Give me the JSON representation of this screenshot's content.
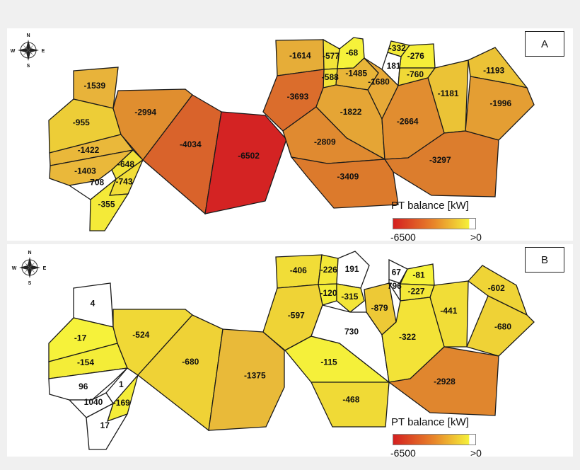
{
  "colors": {
    "scale_low": "#d42020",
    "scale_mid": "#e8862a",
    "scale_high": "#f5f03a",
    "positive": "#ffffff",
    "border": "#1a1a1a"
  },
  "compass": {
    "n": "N",
    "s": "S",
    "e": "E",
    "w": "W"
  },
  "legend": {
    "title": "PT balance [kW]",
    "min_label": "-6500",
    "max_label": ">0"
  },
  "panels": [
    {
      "label": "A",
      "regions": [
        {
          "value": "-1539",
          "color": "#e8b33a"
        },
        {
          "value": "-955",
          "color": "#edcd37"
        },
        {
          "value": "-1422",
          "color": "#eab83a"
        },
        {
          "value": "-1403",
          "color": "#eab83a"
        },
        {
          "value": "-648",
          "color": "#f2e237"
        },
        {
          "value": "708",
          "color": "#ffffff"
        },
        {
          "value": "-743",
          "color": "#f1dd37"
        },
        {
          "value": "-355",
          "color": "#f4ea38"
        },
        {
          "value": "-2994",
          "color": "#e08e2f"
        },
        {
          "value": "-4034",
          "color": "#d9632b"
        },
        {
          "value": "-6502",
          "color": "#d42323"
        },
        {
          "value": "-1614",
          "color": "#e6ad38"
        },
        {
          "value": "-577",
          "color": "#f2e338"
        },
        {
          "value": "-68",
          "color": "#f6f23a"
        },
        {
          "value": "-588",
          "color": "#f2e238"
        },
        {
          "value": "-1485",
          "color": "#e9b538"
        },
        {
          "value": "-3693",
          "color": "#db6d2c"
        },
        {
          "value": "-332",
          "color": "#f4eb38"
        },
        {
          "value": "-276",
          "color": "#f5ee39"
        },
        {
          "value": "181",
          "color": "#ffffff"
        },
        {
          "value": "-760",
          "color": "#f0d936"
        },
        {
          "value": "-1680",
          "color": "#e7a937"
        },
        {
          "value": "-1822",
          "color": "#e5a535"
        },
        {
          "value": "-1181",
          "color": "#ebc336"
        },
        {
          "value": "-1193",
          "color": "#ebc236"
        },
        {
          "value": "-1996",
          "color": "#e49e33"
        },
        {
          "value": "-2664",
          "color": "#e18d30"
        },
        {
          "value": "-2809",
          "color": "#e08a30"
        },
        {
          "value": "-3409",
          "color": "#dc7a2c"
        },
        {
          "value": "-3297",
          "color": "#dc7d2d"
        }
      ]
    },
    {
      "label": "B",
      "regions": [
        {
          "value": "4",
          "color": "#ffffff"
        },
        {
          "value": "-17",
          "color": "#f6f23a"
        },
        {
          "value": "-154",
          "color": "#f4ed38"
        },
        {
          "value": "96",
          "color": "#ffffff"
        },
        {
          "value": "1",
          "color": "#ffffff"
        },
        {
          "value": "1040",
          "color": "#ffffff"
        },
        {
          "value": "-169",
          "color": "#f4ed38"
        },
        {
          "value": "17",
          "color": "#ffffff"
        },
        {
          "value": "-524",
          "color": "#f0d836"
        },
        {
          "value": "-680",
          "color": "#efd236"
        },
        {
          "value": "-1375",
          "color": "#e9ba39"
        },
        {
          "value": "-406",
          "color": "#f1dd37"
        },
        {
          "value": "-226",
          "color": "#f3e838"
        },
        {
          "value": "191",
          "color": "#ffffff"
        },
        {
          "value": "-120",
          "color": "#f4ee38"
        },
        {
          "value": "-315",
          "color": "#f3e537"
        },
        {
          "value": "-597",
          "color": "#efd336"
        },
        {
          "value": "-879",
          "color": "#edc936"
        },
        {
          "value": "67",
          "color": "#ffffff"
        },
        {
          "value": "-81",
          "color": "#f6f23a"
        },
        {
          "value": "796",
          "color": "#ffffff"
        },
        {
          "value": "-227",
          "color": "#f3e838"
        },
        {
          "value": "-441",
          "color": "#f1dd37"
        },
        {
          "value": "-602",
          "color": "#efd436"
        },
        {
          "value": "-680",
          "color": "#efd236"
        },
        {
          "value": "-115",
          "color": "#f5f03a"
        },
        {
          "value": "730",
          "color": "#ffffff"
        },
        {
          "value": "-322",
          "color": "#f3e337"
        },
        {
          "value": "-468",
          "color": "#f0da36"
        },
        {
          "value": "-2928",
          "color": "#e0862e"
        }
      ]
    }
  ]
}
